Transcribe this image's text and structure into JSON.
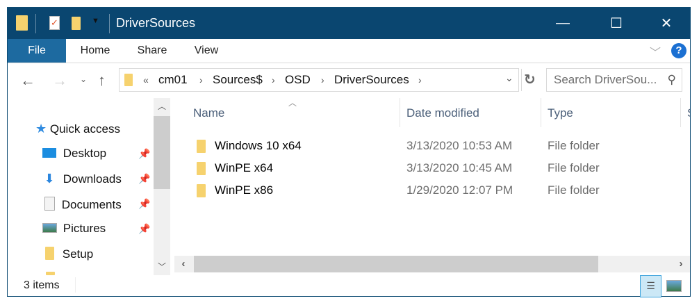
{
  "window": {
    "title": "DriverSources",
    "minimize": "—",
    "maximize": "☐",
    "close": "✕"
  },
  "ribbon": {
    "tabs": [
      {
        "label": "File"
      },
      {
        "label": "Home"
      },
      {
        "label": "Share"
      },
      {
        "label": "View"
      }
    ],
    "help": "?",
    "expand": "﹀"
  },
  "address": {
    "overflow": "«",
    "crumbs": [
      "cm01",
      "Sources$",
      "OSD",
      "DriverSources"
    ],
    "separator": "›"
  },
  "search": {
    "placeholder": "Search DriverSou..."
  },
  "nav": {
    "items": [
      {
        "label": "Quick access",
        "icon": "star-icon"
      },
      {
        "label": "Desktop",
        "icon": "desktop-icon",
        "pinned": true
      },
      {
        "label": "Downloads",
        "icon": "download-icon",
        "pinned": true
      },
      {
        "label": "Documents",
        "icon": "documents-icon",
        "pinned": true
      },
      {
        "label": "Pictures",
        "icon": "pictures-icon",
        "pinned": true
      },
      {
        "label": "Setup",
        "icon": "folder-icon"
      }
    ]
  },
  "columns": {
    "name": "Name",
    "date": "Date modified",
    "type": "Type",
    "size": "S"
  },
  "files": [
    {
      "name": "Windows 10 x64",
      "date": "3/13/2020 10:53 AM",
      "type": "File folder"
    },
    {
      "name": "WinPE x64",
      "date": "3/13/2020 10:45 AM",
      "type": "File folder"
    },
    {
      "name": "WinPE x86",
      "date": "1/29/2020 12:07 PM",
      "type": "File folder"
    }
  ],
  "status": {
    "count": "3 items"
  },
  "colors": {
    "titlebar": "#0a4670",
    "file_tab": "#1d6aa0",
    "folder": "#f6d26e"
  }
}
